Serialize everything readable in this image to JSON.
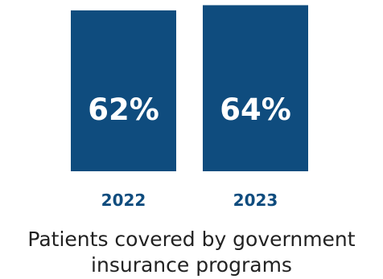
{
  "chart_data": {
    "type": "bar",
    "categories": [
      "2022",
      "2023"
    ],
    "values": [
      62,
      64
    ],
    "value_labels": [
      "62%",
      "64%"
    ],
    "title": "Patients covered by government insurance programs",
    "xlabel": "",
    "ylabel": "",
    "ylim": [
      0,
      66
    ],
    "grid": false,
    "legend": "none",
    "colors": {
      "bar": "#0f4c7e",
      "value_label": "#ffffff",
      "category_label": "#0f4c7e",
      "caption": "#222222"
    }
  }
}
